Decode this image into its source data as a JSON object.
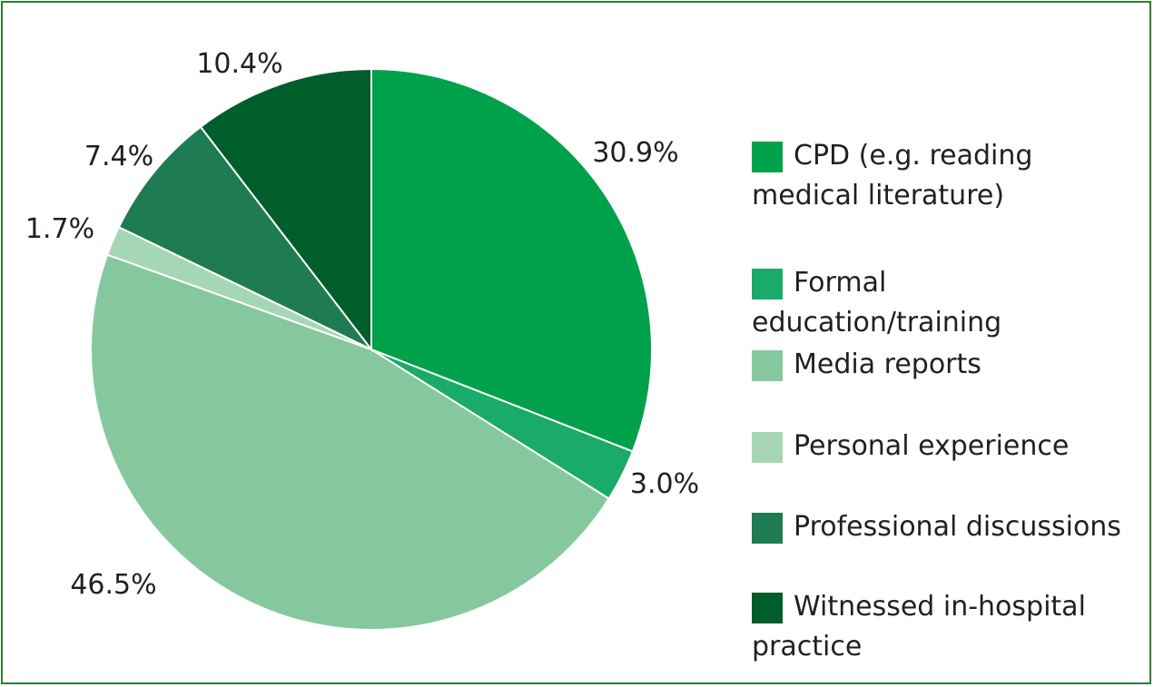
{
  "chart_data": {
    "type": "pie",
    "title": "",
    "slices": [
      {
        "label": "CPD (e.g. reading medical literature)",
        "value": 30.9,
        "value_label": "30.9%",
        "color": "#00a14b"
      },
      {
        "label": "Formal education/training",
        "value": 3.0,
        "value_label": "3.0%",
        "color": "#1aaa6a"
      },
      {
        "label": "Media reports",
        "value": 46.5,
        "value_label": "46.5%",
        "color": "#86c89e"
      },
      {
        "label": "Personal experience",
        "value": 1.7,
        "value_label": "1.7%",
        "color": "#a5d6b5"
      },
      {
        "label": "Professional discussions",
        "value": 7.4,
        "value_label": "7.4%",
        "color": "#1e7b52"
      },
      {
        "label": "Witnessed in-hospital practice",
        "value": 10.4,
        "value_label": "10.4%",
        "color": "#005e2b"
      }
    ],
    "start_angle": "12 o'clock",
    "direction": "clockwise",
    "legend_position": "right"
  },
  "frame": {
    "border_color": "#2e7d32"
  }
}
